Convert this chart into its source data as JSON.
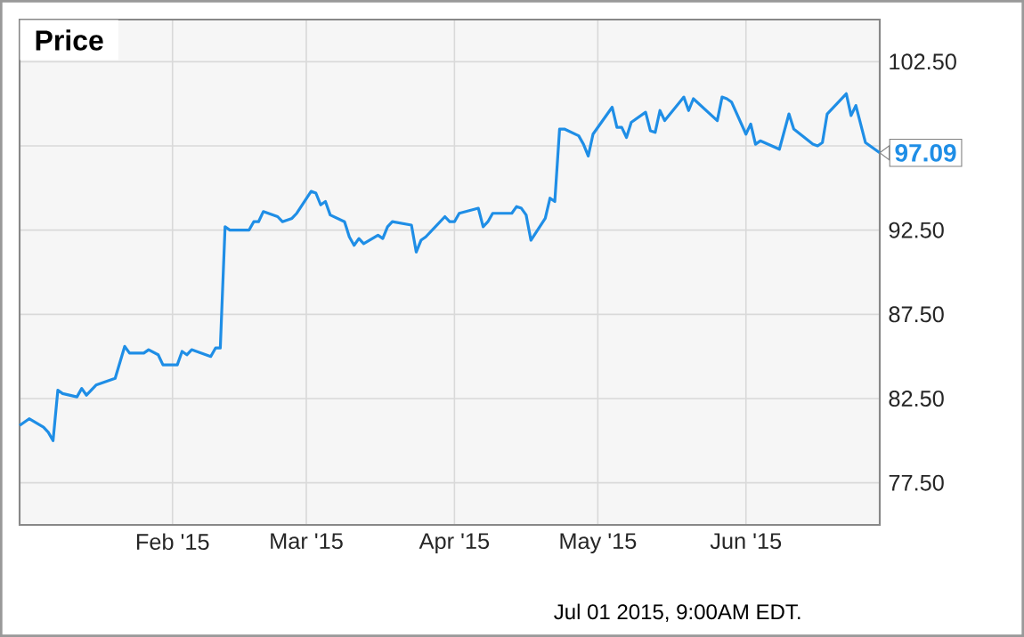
{
  "chart_data": {
    "type": "line",
    "title": "Price",
    "x": [
      "2014-12-31",
      "2015-01-02",
      "2015-01-05",
      "2015-01-06",
      "2015-01-07",
      "2015-01-08",
      "2015-01-09",
      "2015-01-12",
      "2015-01-13",
      "2015-01-14",
      "2015-01-16",
      "2015-01-20",
      "2015-01-22",
      "2015-01-23",
      "2015-01-26",
      "2015-01-27",
      "2015-01-29",
      "2015-01-30",
      "2015-02-02",
      "2015-02-03",
      "2015-02-04",
      "2015-02-05",
      "2015-02-09",
      "2015-02-10",
      "2015-02-11",
      "2015-02-12",
      "2015-02-13",
      "2015-02-17",
      "2015-02-18",
      "2015-02-19",
      "2015-02-20",
      "2015-02-23",
      "2015-02-24",
      "2015-02-26",
      "2015-02-27",
      "2015-03-02",
      "2015-03-03",
      "2015-03-04",
      "2015-03-05",
      "2015-03-06",
      "2015-03-09",
      "2015-03-10",
      "2015-03-11",
      "2015-03-12",
      "2015-03-13",
      "2015-03-16",
      "2015-03-17",
      "2015-03-18",
      "2015-03-19",
      "2015-03-23",
      "2015-03-24",
      "2015-03-25",
      "2015-03-26",
      "2015-03-30",
      "2015-03-31",
      "2015-04-01",
      "2015-04-02",
      "2015-04-06",
      "2015-04-07",
      "2015-04-08",
      "2015-04-09",
      "2015-04-13",
      "2015-04-14",
      "2015-04-15",
      "2015-04-16",
      "2015-04-17",
      "2015-04-20",
      "2015-04-21",
      "2015-04-22",
      "2015-04-23",
      "2015-04-24",
      "2015-04-27",
      "2015-04-28",
      "2015-04-29",
      "2015-04-30",
      "2015-05-04",
      "2015-05-05",
      "2015-05-06",
      "2015-05-07",
      "2015-05-08",
      "2015-05-11",
      "2015-05-12",
      "2015-05-13",
      "2015-05-14",
      "2015-05-15",
      "2015-05-19",
      "2015-05-20",
      "2015-05-21",
      "2015-05-26",
      "2015-05-27",
      "2015-05-28",
      "2015-05-29",
      "2015-06-01",
      "2015-06-02",
      "2015-06-03",
      "2015-06-04",
      "2015-06-08",
      "2015-06-10",
      "2015-06-11",
      "2015-06-15",
      "2015-06-16",
      "2015-06-17",
      "2015-06-18",
      "2015-06-22",
      "2015-06-23",
      "2015-06-24",
      "2015-06-26",
      "2015-06-29"
    ],
    "series": [
      {
        "color": "#1f8ee6",
        "values": [
          80.9,
          81.3,
          80.8,
          80.5,
          80.0,
          83.0,
          82.8,
          82.6,
          83.1,
          82.7,
          83.3,
          83.7,
          85.6,
          85.2,
          85.2,
          85.4,
          85.1,
          84.5,
          84.5,
          85.3,
          85.1,
          85.4,
          85.0,
          85.5,
          85.5,
          92.7,
          92.5,
          92.5,
          93.0,
          93.0,
          93.6,
          93.3,
          93.0,
          93.2,
          93.5,
          94.8,
          94.7,
          94.0,
          94.2,
          93.4,
          93.0,
          92.1,
          91.6,
          92.0,
          91.7,
          92.2,
          92.0,
          92.7,
          93.0,
          92.8,
          91.2,
          91.9,
          92.1,
          93.3,
          93.0,
          93.0,
          93.5,
          93.8,
          92.7,
          93.0,
          93.5,
          93.5,
          93.9,
          93.8,
          93.4,
          91.9,
          93.2,
          94.4,
          94.2,
          98.5,
          98.5,
          98.1,
          97.6,
          96.9,
          98.2,
          99.8,
          98.6,
          98.6,
          98.0,
          98.9,
          99.5,
          98.4,
          98.3,
          99.6,
          99.0,
          100.4,
          99.6,
          100.3,
          99.0,
          100.4,
          100.3,
          100.1,
          98.2,
          98.8,
          97.6,
          97.8,
          97.3,
          99.4,
          98.5,
          97.6,
          97.5,
          97.7,
          99.4,
          100.6,
          99.3,
          99.9,
          97.7,
          97.09
        ]
      }
    ],
    "xlim": [
      "2014-12-31",
      "2015-06-29"
    ],
    "xticks": [
      {
        "value": "2015-02-01",
        "label": "Feb '15"
      },
      {
        "value": "2015-03-01",
        "label": "Mar '15"
      },
      {
        "value": "2015-04-01",
        "label": "Apr '15"
      },
      {
        "value": "2015-05-01",
        "label": "May '15"
      },
      {
        "value": "2015-06-01",
        "label": "Jun '15"
      }
    ],
    "ylim": [
      75,
      105
    ],
    "yticks": [
      {
        "value": 77.5,
        "label": "77.50"
      },
      {
        "value": 82.5,
        "label": "82.50"
      },
      {
        "value": 87.5,
        "label": "87.50"
      },
      {
        "value": 92.5,
        "label": "92.50"
      },
      {
        "value": 97.5,
        "label": null
      },
      {
        "value": 102.5,
        "label": "102.50"
      }
    ],
    "grid": true,
    "marker": "none",
    "line_style": "solid",
    "annotations": [
      {
        "text": "97.09",
        "x": "2015-06-29",
        "y": 97.09
      },
      "Jul 01 2015, 9:00AM EDT."
    ]
  }
}
